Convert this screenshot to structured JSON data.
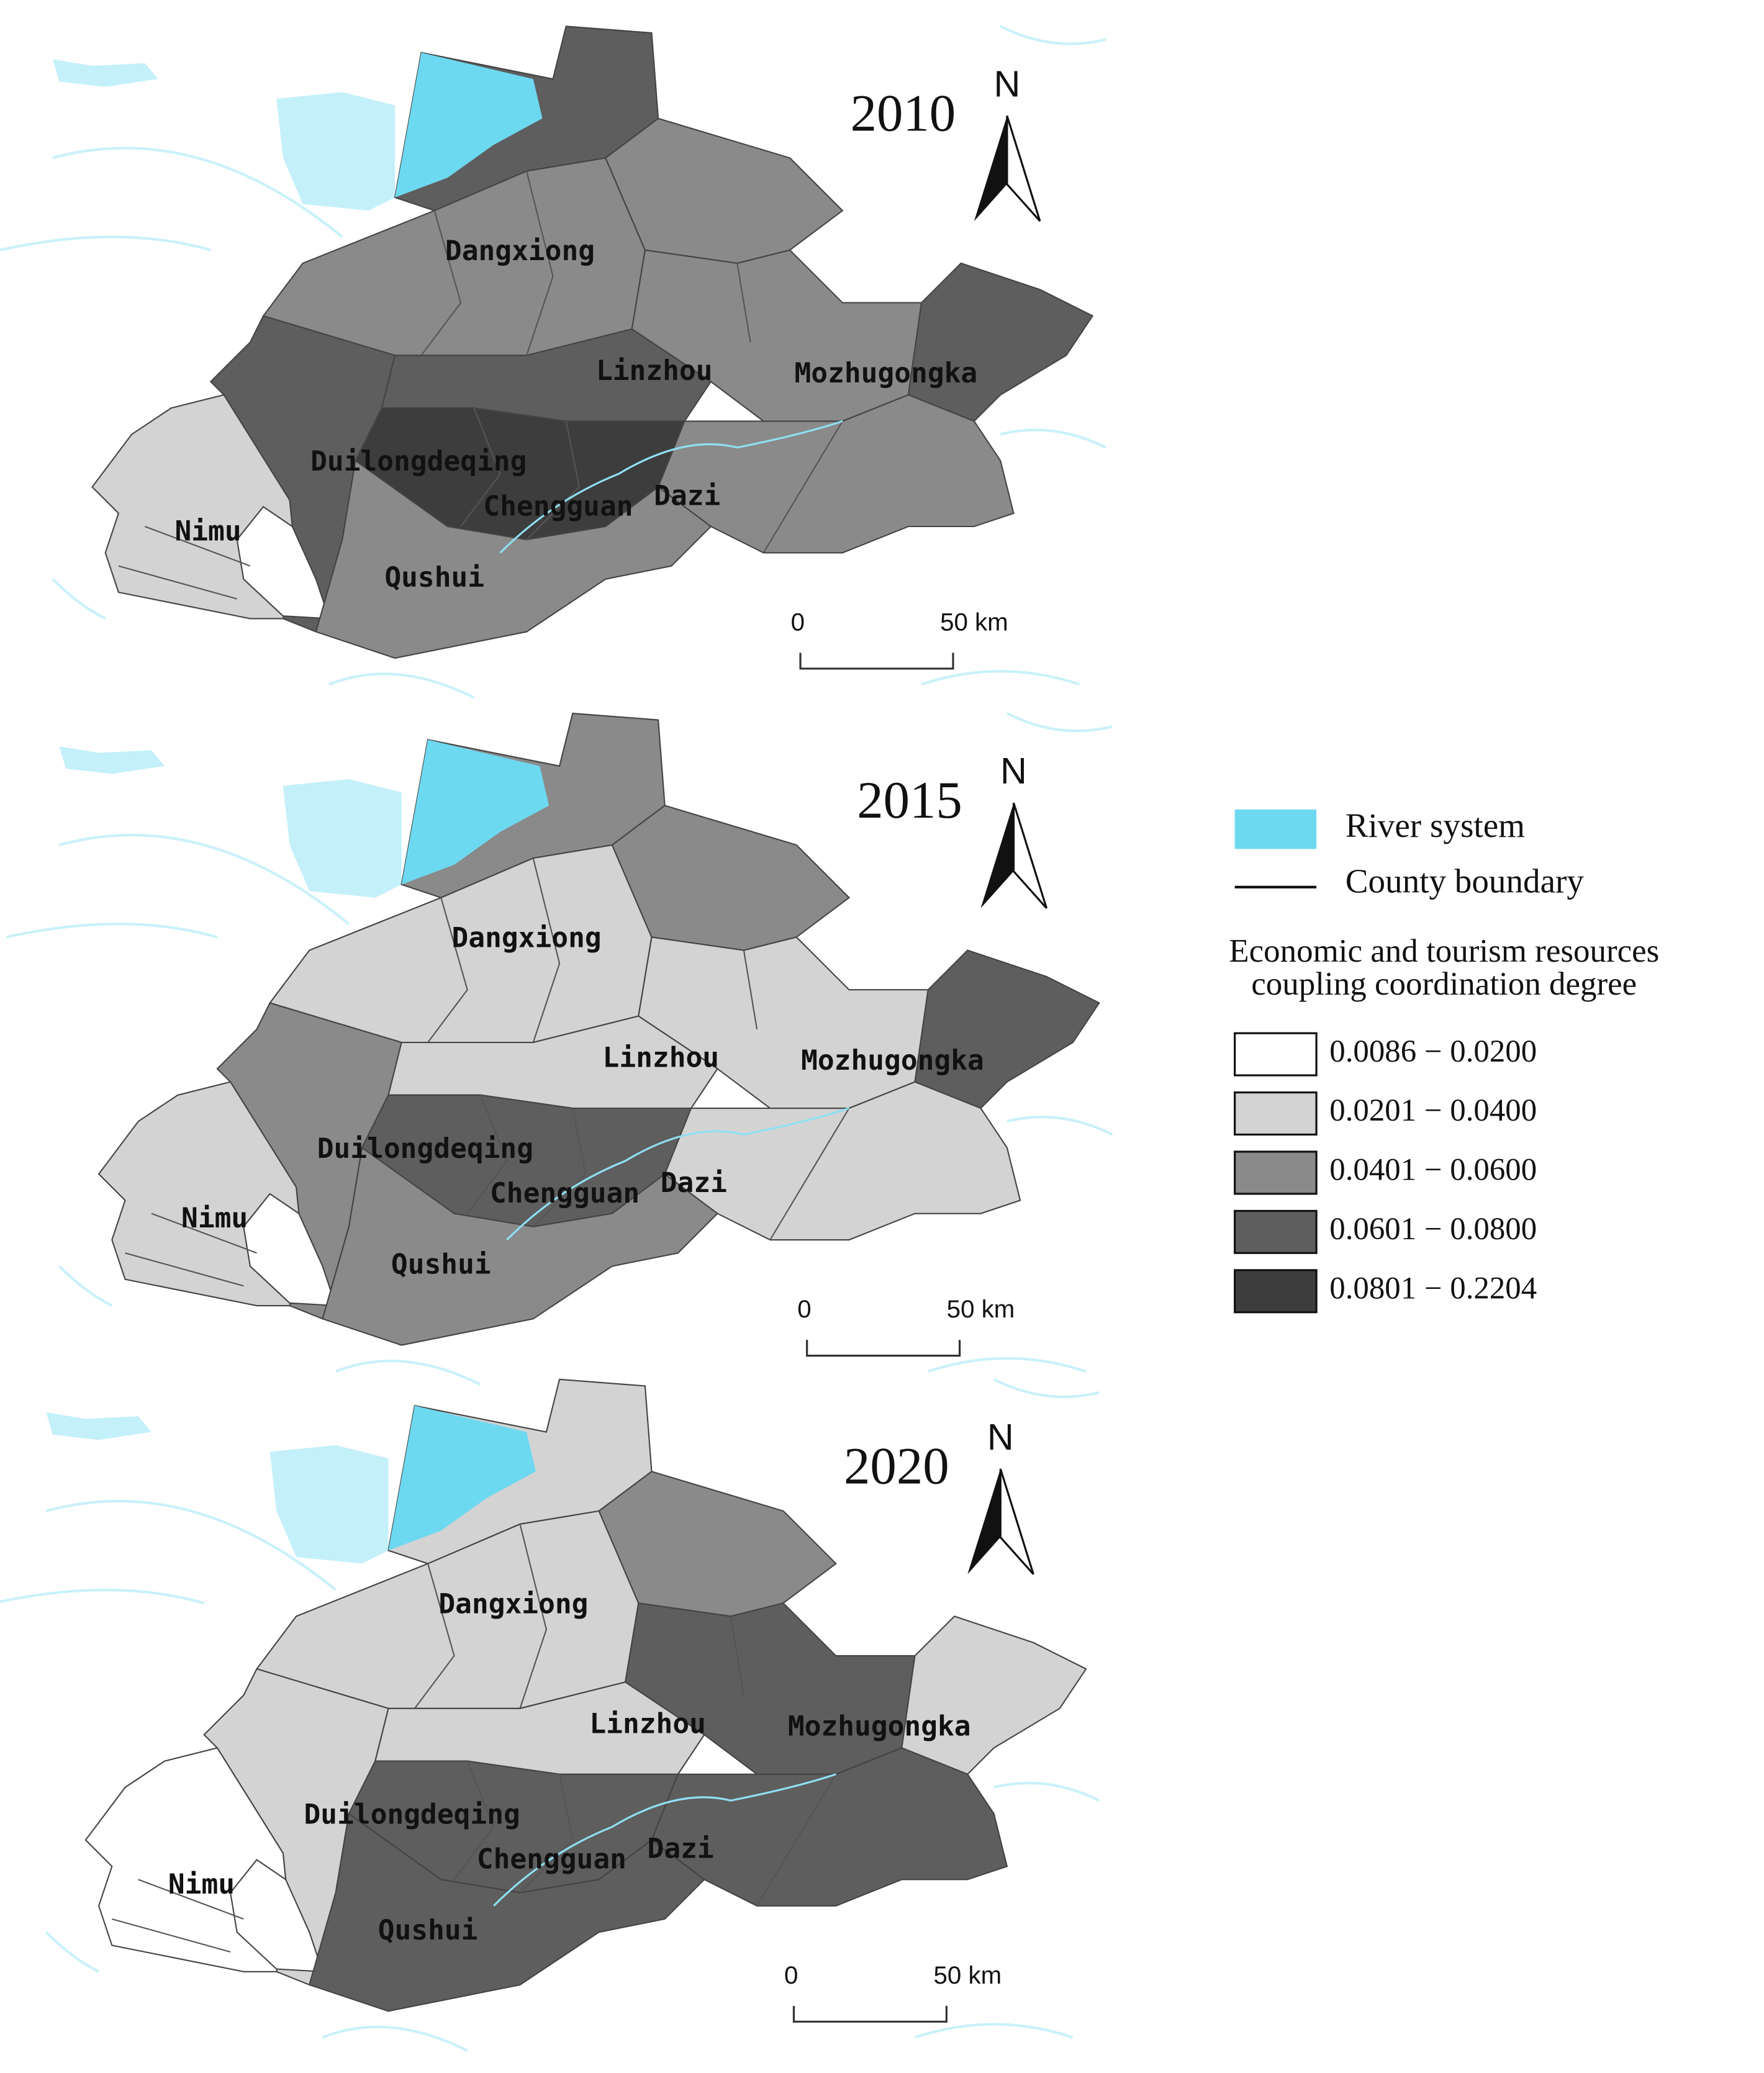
{
  "maps": [
    {
      "year": "2010",
      "north": "N",
      "labels": [
        "Dangxiong",
        "Linzhou",
        "Mozhugongka",
        "Duilongdeqing",
        "Nimu",
        "Chengguan",
        "Dazi",
        "Qushui"
      ],
      "scale_bar": {
        "start": "0",
        "end": "50 km"
      }
    },
    {
      "year": "2015",
      "north": "N",
      "labels": [
        "Dangxiong",
        "Linzhou",
        "Mozhugongka",
        "Duilongdeqing",
        "Nimu",
        "Chengguan",
        "Dazi",
        "Qushui"
      ],
      "scale_bar": {
        "start": "0",
        "end": "50 km"
      }
    },
    {
      "year": "2020",
      "north": "N",
      "labels": [
        "Dangxiong",
        "Linzhou",
        "Mozhugongka",
        "Duilongdeqing",
        "Nimu",
        "Chengguan",
        "Dazi",
        "Qushui"
      ],
      "scale_bar": {
        "start": "0",
        "end": "50 km"
      }
    }
  ],
  "legend": {
    "river": "River system",
    "boundary": "County boundary",
    "title": [
      "Economic and tourism resources",
      "coupling coordination degree"
    ],
    "classes": [
      {
        "label": "0.0086 − 0.0200",
        "color": "#ffffff"
      },
      {
        "label": "0.0201 − 0.0400",
        "color": "#d3d3d3"
      },
      {
        "label": "0.0401 − 0.0600",
        "color": "#8a8a8a"
      },
      {
        "label": "0.0601 − 0.0800",
        "color": "#5e5e5e"
      },
      {
        "label": "0.0801 − 0.2204",
        "color": "#3d3d3d"
      }
    ]
  }
}
